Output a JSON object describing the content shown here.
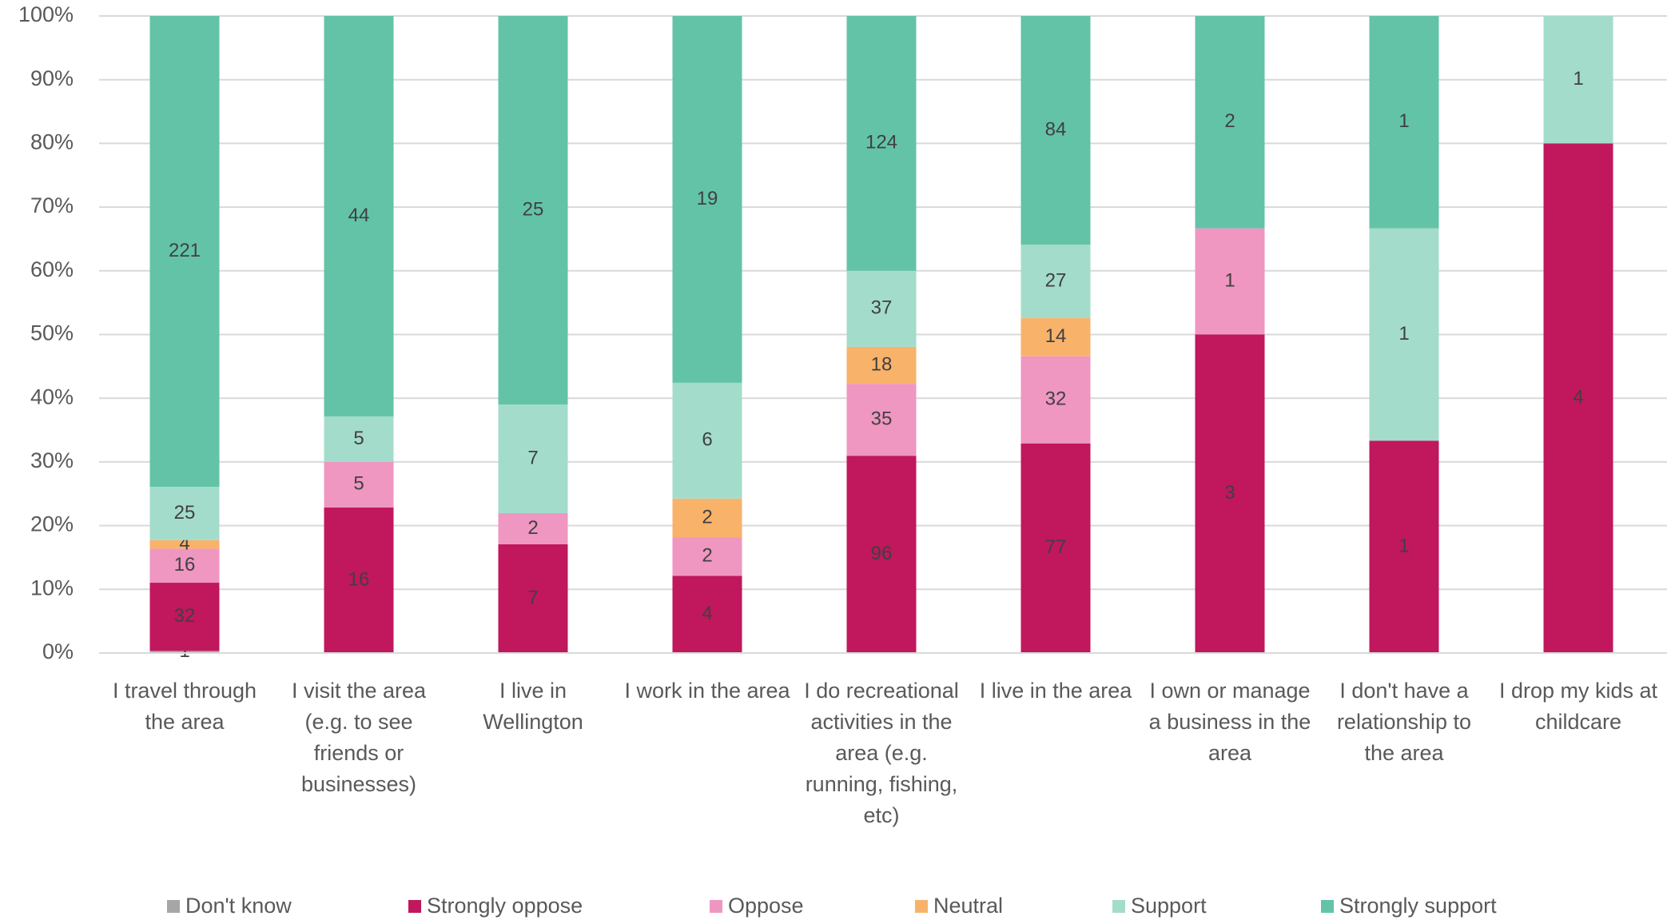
{
  "chart_data": {
    "type": "bar",
    "stacking": "percent",
    "categories": [
      "I travel through the area",
      "I visit the area (e.g. to see friends or businesses)",
      "I live in Wellington",
      "I work in the area",
      "I do recreational activities in the area (e.g. running, fishing, etc)",
      "I live in the area",
      "I own or manage a business in the area",
      "I don't have a relationship to the area",
      "I drop my kids at childcare"
    ],
    "series": [
      {
        "name": "Don't know",
        "color": "#a6a6a6",
        "values": [
          1,
          null,
          null,
          null,
          null,
          null,
          null,
          null,
          null
        ]
      },
      {
        "name": "Strongly oppose",
        "color": "#c0175d",
        "values": [
          32,
          16,
          7,
          4,
          96,
          77,
          3,
          1,
          4
        ]
      },
      {
        "name": "Oppose",
        "color": "#ef96c1",
        "values": [
          16,
          5,
          2,
          2,
          35,
          32,
          1,
          null,
          null
        ]
      },
      {
        "name": "Neutral",
        "color": "#f9b26a",
        "values": [
          4,
          null,
          null,
          2,
          18,
          14,
          null,
          null,
          null
        ]
      },
      {
        "name": "Support",
        "color": "#a3dccb",
        "values": [
          25,
          5,
          7,
          6,
          37,
          27,
          null,
          1,
          1
        ]
      },
      {
        "name": "Strongly support",
        "color": "#63c3a7",
        "values": [
          221,
          44,
          25,
          19,
          124,
          84,
          2,
          1,
          null
        ]
      }
    ],
    "ylim": [
      0,
      100
    ],
    "yticks": [
      {
        "value": 0,
        "label": "0%"
      },
      {
        "value": 10,
        "label": "10%"
      },
      {
        "value": 20,
        "label": "20%"
      },
      {
        "value": 30,
        "label": "30%"
      },
      {
        "value": 40,
        "label": "40%"
      },
      {
        "value": 50,
        "label": "50%"
      },
      {
        "value": 60,
        "label": "60%"
      },
      {
        "value": 70,
        "label": "70%"
      },
      {
        "value": 80,
        "label": "80%"
      },
      {
        "value": 90,
        "label": "90%"
      },
      {
        "value": 100,
        "label": "100%"
      }
    ],
    "grid": true,
    "legend": "bottom"
  }
}
